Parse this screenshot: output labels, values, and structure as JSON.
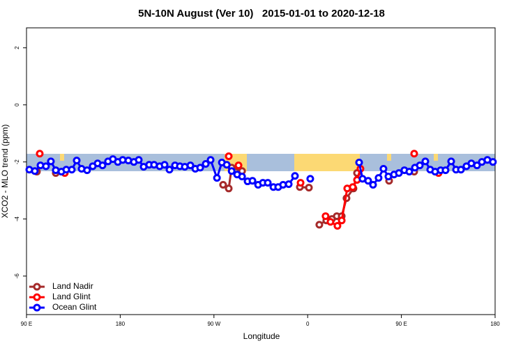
{
  "chart_data": {
    "type": "line",
    "title": "5N-10N August (Ver 10)   2015-01-01 to 2020-12-18",
    "xlabel": "Longitude",
    "ylabel": "XCO2 - MLO trend (ppm)",
    "xlim": [
      90,
      540
    ],
    "xticks": [
      {
        "value": 90,
        "label": "90 E"
      },
      180,
      {
        "value": 270,
        "label": "90 W"
      },
      {
        "value": 360,
        "label": "0"
      },
      {
        "value": 450,
        "label": "90 E"
      },
      {
        "value": 540,
        "label": "180"
      }
    ],
    "ylim": [
      -7.35,
      2.7
    ],
    "yticks": [
      2,
      0,
      -2,
      -4,
      -6
    ],
    "grid": false,
    "legend": "bottom-left",
    "series": [
      {
        "name": "Land Nadir",
        "color": "#a52a2a",
        "x": [
          100.0,
          null,
          118.1,
          null,
          278.8,
          284.2,
          287.0,
          297.0,
          null,
          352.5,
          361.2,
          null,
          371.2,
          377.9,
          383.3,
          388.0,
          392.7,
          397.3,
          404.0,
          407.4,
          null,
          438.2,
          null,
          462.3
        ],
        "values": [
          -2.34,
          null,
          -2.39,
          null,
          -2.8,
          -2.93,
          -2.2,
          -2.32,
          null,
          -2.88,
          -2.9,
          null,
          -4.2,
          -4.05,
          -4.0,
          -3.9,
          -3.9,
          -3.27,
          -2.93,
          -2.39,
          null,
          -2.66,
          null,
          -2.34
        ]
      },
      {
        "name": "Land Glint",
        "color": "#ff0000",
        "x": [
          102.7,
          null,
          126.8,
          null,
          284.2,
          null,
          293.6,
          null,
          353.2,
          null,
          377.2,
          381.9,
          388.6,
          392.7,
          398.0,
          403.3,
          407.4,
          410.7,
          null,
          462.3,
          null,
          485.7
        ],
        "values": [
          -1.71,
          null,
          -2.39,
          null,
          -1.8,
          null,
          -2.12,
          null,
          -2.73,
          null,
          -3.9,
          -4.1,
          -4.24,
          -4.05,
          -2.93,
          -2.88,
          -2.63,
          -2.24,
          null,
          -1.71,
          null,
          -2.39
        ]
      },
      {
        "name": "Ocean Glint",
        "color": "#0000ff",
        "x": [
          92.7,
          98.0,
          103.4,
          108.7,
          113.4,
          118.1,
          123.5,
          128.2,
          133.5,
          138.2,
          142.9,
          148.2,
          153.6,
          158.3,
          163.0,
          168.3,
          173.0,
          177.7,
          182.4,
          187.8,
          193.1,
          197.8,
          202.5,
          207.8,
          212.5,
          217.9,
          222.6,
          227.3,
          232.6,
          237.3,
          242.0,
          247.4,
          252.1,
          256.8,
          262.1,
          266.8,
          272.9,
          277.6,
          282.3,
          287.0,
          292.3,
          297.0,
          302.3,
          307.0,
          312.4,
          317.0,
          321.7,
          327.1,
          331.7,
          336.4,
          341.8,
          347.8,
          null,
          362.5,
          null,
          409.4,
          412.7,
          418.1,
          422.8,
          428.1,
          432.8,
          437.5,
          442.9,
          447.6,
          452.9,
          457.6,
          463.0,
          467.7,
          473.0,
          477.7,
          482.4,
          487.7,
          492.4,
          497.8,
          502.5,
          507.2,
          512.5,
          517.2,
          522.6,
          527.3,
          532.6,
          537.9
        ],
        "values": [
          -2.27,
          -2.32,
          -2.12,
          -2.15,
          -1.98,
          -2.29,
          -2.34,
          -2.27,
          -2.27,
          -1.95,
          -2.24,
          -2.29,
          -2.15,
          -2.05,
          -2.12,
          -1.98,
          -1.9,
          -2.0,
          -1.93,
          -1.95,
          -2.0,
          -1.93,
          -2.17,
          -2.1,
          -2.1,
          -2.15,
          -2.1,
          -2.27,
          -2.12,
          -2.15,
          -2.17,
          -2.12,
          -2.24,
          -2.2,
          -2.07,
          -1.93,
          -2.56,
          -2.02,
          -2.1,
          -2.32,
          -2.44,
          -2.51,
          -2.68,
          -2.66,
          -2.8,
          -2.73,
          -2.73,
          -2.88,
          -2.88,
          -2.8,
          -2.78,
          -2.49,
          null,
          -2.59,
          null,
          -2.02,
          -2.59,
          -2.66,
          -2.8,
          -2.56,
          -2.24,
          -2.51,
          -2.44,
          -2.39,
          -2.29,
          -2.34,
          -2.2,
          -2.12,
          -1.98,
          -2.27,
          -2.34,
          -2.29,
          -2.29,
          -1.98,
          -2.27,
          -2.27,
          -2.15,
          -2.05,
          -2.12,
          -2.0,
          -1.93,
          -2.0
        ]
      }
    ]
  }
}
